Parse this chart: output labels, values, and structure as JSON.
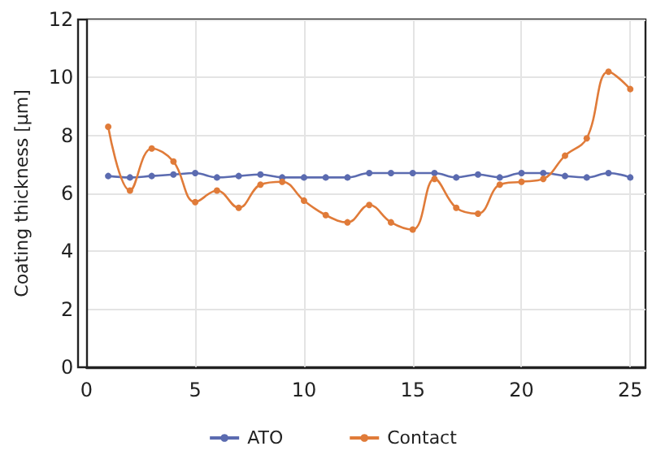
{
  "chart_data": {
    "type": "line",
    "ylabel": "Coating thickness [µm]",
    "x": [
      1,
      2,
      3,
      4,
      5,
      6,
      7,
      8,
      9,
      10,
      11,
      12,
      13,
      14,
      15,
      16,
      17,
      18,
      19,
      20,
      21,
      22,
      23,
      24,
      25
    ],
    "series": [
      {
        "name": "ATO",
        "color": "#5b6bb0",
        "values": [
          6.6,
          6.55,
          6.6,
          6.65,
          6.7,
          6.55,
          6.6,
          6.65,
          6.55,
          6.55,
          6.55,
          6.55,
          6.7,
          6.7,
          6.7,
          6.7,
          6.55,
          6.65,
          6.55,
          6.7,
          6.7,
          6.6,
          6.55,
          6.7,
          6.55
        ]
      },
      {
        "name": "Contact",
        "color": "#e07b39",
        "values": [
          8.3,
          6.1,
          7.55,
          7.1,
          5.7,
          6.1,
          5.5,
          6.3,
          6.4,
          5.75,
          5.25,
          5.0,
          5.6,
          5.0,
          4.75,
          6.5,
          5.5,
          5.3,
          6.3,
          6.4,
          6.5,
          7.3,
          7.9,
          10.2,
          9.6
        ]
      }
    ],
    "xlim": [
      0,
      25.7
    ],
    "xticks": [
      0,
      5,
      10,
      15,
      20,
      25
    ],
    "ylim": [
      0,
      12
    ],
    "yticks": [
      0,
      2,
      4,
      6,
      8,
      10,
      12
    ],
    "grid": true,
    "legend": "bottom",
    "marker": "circle",
    "line_style": "solid"
  }
}
